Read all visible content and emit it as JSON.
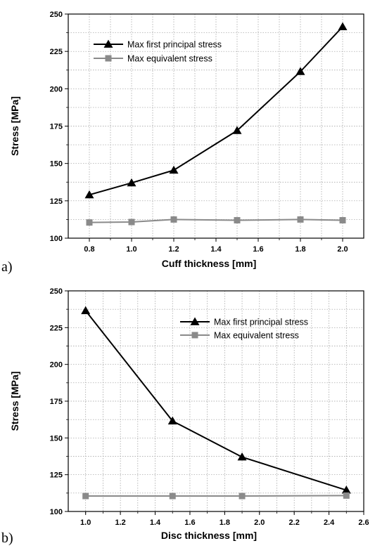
{
  "chart_data": [
    {
      "type": "line",
      "panel_label": "a)",
      "xlabel": "Cuff thickness [mm]",
      "ylabel": "Stress [MPa]",
      "x": [
        0.8,
        1.0,
        1.2,
        1.5,
        1.8,
        2.0
      ],
      "xticks": [
        "0.8",
        "1.0",
        "1.2",
        "1.4",
        "1.6",
        "1.8",
        "2.0"
      ],
      "yticks": [
        "100",
        "125",
        "150",
        "175",
        "200",
        "225",
        "250"
      ],
      "xlim": [
        0.7,
        2.1
      ],
      "ylim": [
        100,
        250
      ],
      "grid": true,
      "legend_position": "top-left",
      "series": [
        {
          "name": "Max first principal stress",
          "marker": "triangle",
          "color": "#000000",
          "values": [
            129,
            137,
            145.5,
            172,
            211.5,
            241.5
          ]
        },
        {
          "name": "Max equivalent stress",
          "marker": "square",
          "color": "#8a8a8a",
          "values": [
            110.5,
            110.8,
            112.5,
            112,
            112.5,
            112
          ]
        }
      ]
    },
    {
      "type": "line",
      "panel_label": "b)",
      "xlabel": "Disc thickness [mm]",
      "ylabel": "Stress [MPa]",
      "x": [
        1.0,
        1.5,
        1.9,
        2.5
      ],
      "xticks": [
        "1.0",
        "1.2",
        "1.4",
        "1.6",
        "1.8",
        "2.0",
        "2.2",
        "2.4",
        "2.6"
      ],
      "yticks": [
        "100",
        "125",
        "150",
        "175",
        "200",
        "225",
        "250"
      ],
      "xlim": [
        0.9,
        2.6
      ],
      "ylim": [
        100,
        250
      ],
      "grid": true,
      "legend_position": "top-right",
      "series": [
        {
          "name": "Max first principal stress",
          "marker": "triangle",
          "color": "#000000",
          "values": [
            236.5,
            161.5,
            137,
            114.5
          ]
        },
        {
          "name": "Max equivalent stress",
          "marker": "square",
          "color": "#8a8a8a",
          "values": [
            110.5,
            110.5,
            110.5,
            110.8
          ]
        }
      ]
    }
  ]
}
